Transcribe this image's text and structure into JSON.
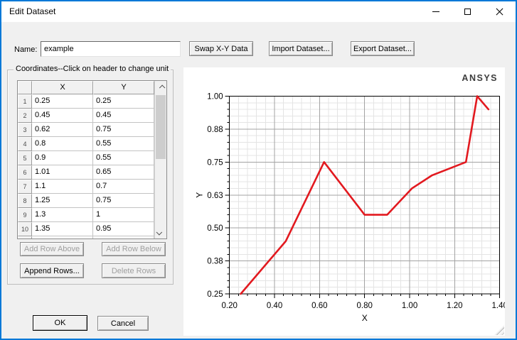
{
  "window": {
    "title": "Edit Dataset",
    "accent_border_color": "#0078d7",
    "controls": {
      "minimize": "minimize",
      "maximize": "maximize",
      "close": "close"
    }
  },
  "form": {
    "name_label": "Name:",
    "name_value": "example"
  },
  "toolbar": {
    "swap": "Swap X-Y Data",
    "import": "Import Dataset...",
    "export": "Export Dataset..."
  },
  "coordinates": {
    "group_title": "Coordinates--Click on header to change unit",
    "columns": [
      "X",
      "Y"
    ],
    "rows": [
      {
        "n": "1",
        "x": "0.25",
        "y": "0.25"
      },
      {
        "n": "2",
        "x": "0.45",
        "y": "0.45"
      },
      {
        "n": "3",
        "x": "0.62",
        "y": "0.75"
      },
      {
        "n": "4",
        "x": "0.8",
        "y": "0.55"
      },
      {
        "n": "5",
        "x": "0.9",
        "y": "0.55"
      },
      {
        "n": "6",
        "x": "1.01",
        "y": "0.65"
      },
      {
        "n": "7",
        "x": "1.1",
        "y": "0.7"
      },
      {
        "n": "8",
        "x": "1.25",
        "y": "0.75"
      },
      {
        "n": "9",
        "x": "1.3",
        "y": "1"
      },
      {
        "n": "10",
        "x": "1.35",
        "y": "0.95"
      }
    ],
    "row_buttons": {
      "add_above": {
        "label": "Add Row Above",
        "enabled": false
      },
      "add_below": {
        "label": "Add Row Below",
        "enabled": false
      },
      "append": {
        "label": "Append Rows...",
        "enabled": true
      },
      "delete": {
        "label": "Delete Rows",
        "enabled": false
      }
    }
  },
  "footer": {
    "ok_label": "OK",
    "cancel_label": "Cancel"
  },
  "chart_data": {
    "type": "line",
    "watermark": "ANSYS",
    "xlabel": "X",
    "ylabel": "Y",
    "xlim": [
      0.2,
      1.4
    ],
    "ylim": [
      0.25,
      1.0
    ],
    "x_ticks": [
      0.2,
      0.4,
      0.6,
      0.8,
      1.0,
      1.2,
      1.4
    ],
    "x_tick_labels": [
      "0.20",
      "0.40",
      "0.60",
      "0.80",
      "1.00",
      "1.20",
      "1.40"
    ],
    "y_ticks": [
      0.25,
      0.375,
      0.5,
      0.625,
      0.75,
      0.875,
      1.0
    ],
    "y_tick_labels": [
      "0.25",
      "0.38",
      "0.50",
      "0.63",
      "0.75",
      "0.88",
      "1.00"
    ],
    "x_minor_step": 0.04,
    "y_minor_step": 0.025,
    "grid": true,
    "series": [
      {
        "name": "example",
        "color": "#e2191f",
        "x": [
          0.25,
          0.45,
          0.62,
          0.8,
          0.9,
          1.01,
          1.1,
          1.25,
          1.3,
          1.35
        ],
        "y": [
          0.25,
          0.45,
          0.75,
          0.55,
          0.55,
          0.65,
          0.7,
          0.75,
          1.0,
          0.95
        ]
      }
    ]
  }
}
